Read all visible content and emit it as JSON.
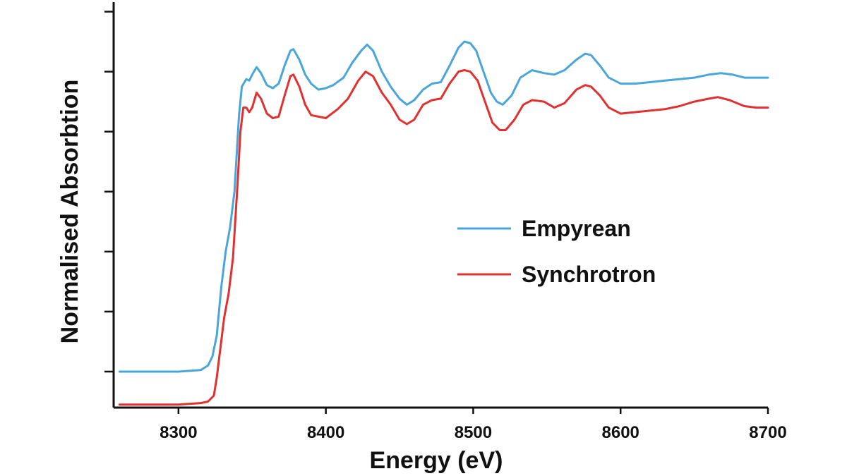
{
  "chart_data": {
    "type": "line",
    "title": "",
    "xlabel": "Energy (eV)",
    "ylabel": "Normalised Absorbtion",
    "xlim": [
      8256,
      8700
    ],
    "ylim": [
      -0.12,
      1.22
    ],
    "x_ticks": [
      8300,
      8400,
      8500,
      8600,
      8700
    ],
    "x_tick_labels": [
      "8300",
      "8400",
      "8500",
      "8600",
      "8700"
    ],
    "y_ticks": [
      0.0,
      0.2,
      0.4,
      0.6,
      0.8,
      1.0,
      1.2
    ],
    "y_tick_labels_shown": false,
    "grid": false,
    "legend_position": "center-right",
    "series": [
      {
        "name": "Empyrean",
        "color": "#4aa6d8",
        "points": [
          [
            8260,
            0.0
          ],
          [
            8280,
            0.0
          ],
          [
            8300,
            0.0
          ],
          [
            8315,
            0.005
          ],
          [
            8320,
            0.02
          ],
          [
            8323,
            0.05
          ],
          [
            8326,
            0.12
          ],
          [
            8329,
            0.28
          ],
          [
            8332,
            0.4
          ],
          [
            8335,
            0.48
          ],
          [
            8338,
            0.6
          ],
          [
            8341,
            0.85
          ],
          [
            8343,
            0.95
          ],
          [
            8346,
            0.975
          ],
          [
            8348,
            0.97
          ],
          [
            8350,
            0.99
          ],
          [
            8353,
            1.015
          ],
          [
            8356,
            0.995
          ],
          [
            8360,
            0.955
          ],
          [
            8364,
            0.945
          ],
          [
            8368,
            0.96
          ],
          [
            8372,
            1.02
          ],
          [
            8376,
            1.07
          ],
          [
            8378,
            1.075
          ],
          [
            8382,
            1.04
          ],
          [
            8386,
            0.99
          ],
          [
            8390,
            0.96
          ],
          [
            8395,
            0.94
          ],
          [
            8400,
            0.945
          ],
          [
            8405,
            0.955
          ],
          [
            8412,
            0.98
          ],
          [
            8418,
            1.03
          ],
          [
            8424,
            1.07
          ],
          [
            8428,
            1.09
          ],
          [
            8432,
            1.07
          ],
          [
            8438,
            1.0
          ],
          [
            8444,
            0.95
          ],
          [
            8450,
            0.91
          ],
          [
            8455,
            0.89
          ],
          [
            8460,
            0.905
          ],
          [
            8466,
            0.94
          ],
          [
            8472,
            0.96
          ],
          [
            8478,
            0.965
          ],
          [
            8484,
            1.02
          ],
          [
            8490,
            1.08
          ],
          [
            8494,
            1.1
          ],
          [
            8498,
            1.095
          ],
          [
            8502,
            1.07
          ],
          [
            8507,
            1.0
          ],
          [
            8512,
            0.93
          ],
          [
            8516,
            0.9
          ],
          [
            8520,
            0.89
          ],
          [
            8526,
            0.92
          ],
          [
            8532,
            0.98
          ],
          [
            8540,
            1.005
          ],
          [
            8548,
            0.995
          ],
          [
            8555,
            0.99
          ],
          [
            8562,
            1.005
          ],
          [
            8570,
            1.04
          ],
          [
            8576,
            1.06
          ],
          [
            8580,
            1.055
          ],
          [
            8586,
            1.02
          ],
          [
            8592,
            0.98
          ],
          [
            8600,
            0.96
          ],
          [
            8610,
            0.96
          ],
          [
            8620,
            0.965
          ],
          [
            8630,
            0.97
          ],
          [
            8640,
            0.975
          ],
          [
            8650,
            0.98
          ],
          [
            8660,
            0.99
          ],
          [
            8668,
            0.995
          ],
          [
            8676,
            0.99
          ],
          [
            8684,
            0.98
          ],
          [
            8692,
            0.98
          ],
          [
            8700,
            0.98
          ]
        ]
      },
      {
        "name": "Synchrotron",
        "color": "#e03030",
        "points": [
          [
            8260,
            -0.11
          ],
          [
            8280,
            -0.11
          ],
          [
            8300,
            -0.11
          ],
          [
            8315,
            -0.105
          ],
          [
            8320,
            -0.1
          ],
          [
            8324,
            -0.08
          ],
          [
            8326,
            -0.02
          ],
          [
            8328,
            0.06
          ],
          [
            8331,
            0.18
          ],
          [
            8334,
            0.26
          ],
          [
            8337,
            0.38
          ],
          [
            8340,
            0.62
          ],
          [
            8342,
            0.8
          ],
          [
            8344,
            0.88
          ],
          [
            8346,
            0.88
          ],
          [
            8348,
            0.865
          ],
          [
            8350,
            0.88
          ],
          [
            8353,
            0.93
          ],
          [
            8356,
            0.91
          ],
          [
            8360,
            0.86
          ],
          [
            8364,
            0.845
          ],
          [
            8368,
            0.85
          ],
          [
            8372,
            0.92
          ],
          [
            8376,
            0.985
          ],
          [
            8378,
            0.99
          ],
          [
            8382,
            0.95
          ],
          [
            8386,
            0.89
          ],
          [
            8390,
            0.855
          ],
          [
            8395,
            0.85
          ],
          [
            8400,
            0.845
          ],
          [
            8408,
            0.875
          ],
          [
            8415,
            0.91
          ],
          [
            8422,
            0.97
          ],
          [
            8427,
            1.0
          ],
          [
            8432,
            0.985
          ],
          [
            8438,
            0.93
          ],
          [
            8444,
            0.89
          ],
          [
            8450,
            0.84
          ],
          [
            8455,
            0.825
          ],
          [
            8460,
            0.84
          ],
          [
            8466,
            0.89
          ],
          [
            8472,
            0.905
          ],
          [
            8478,
            0.91
          ],
          [
            8484,
            0.96
          ],
          [
            8490,
            1.0
          ],
          [
            8494,
            1.005
          ],
          [
            8498,
            1.0
          ],
          [
            8503,
            0.97
          ],
          [
            8508,
            0.9
          ],
          [
            8513,
            0.83
          ],
          [
            8518,
            0.805
          ],
          [
            8522,
            0.805
          ],
          [
            8528,
            0.84
          ],
          [
            8534,
            0.89
          ],
          [
            8540,
            0.905
          ],
          [
            8548,
            0.9
          ],
          [
            8555,
            0.88
          ],
          [
            8562,
            0.895
          ],
          [
            8570,
            0.94
          ],
          [
            8576,
            0.955
          ],
          [
            8580,
            0.95
          ],
          [
            8586,
            0.92
          ],
          [
            8592,
            0.88
          ],
          [
            8600,
            0.86
          ],
          [
            8610,
            0.865
          ],
          [
            8620,
            0.87
          ],
          [
            8630,
            0.875
          ],
          [
            8640,
            0.885
          ],
          [
            8650,
            0.9
          ],
          [
            8660,
            0.91
          ],
          [
            8666,
            0.915
          ],
          [
            8674,
            0.905
          ],
          [
            8684,
            0.885
          ],
          [
            8692,
            0.88
          ],
          [
            8700,
            0.88
          ]
        ]
      }
    ]
  }
}
